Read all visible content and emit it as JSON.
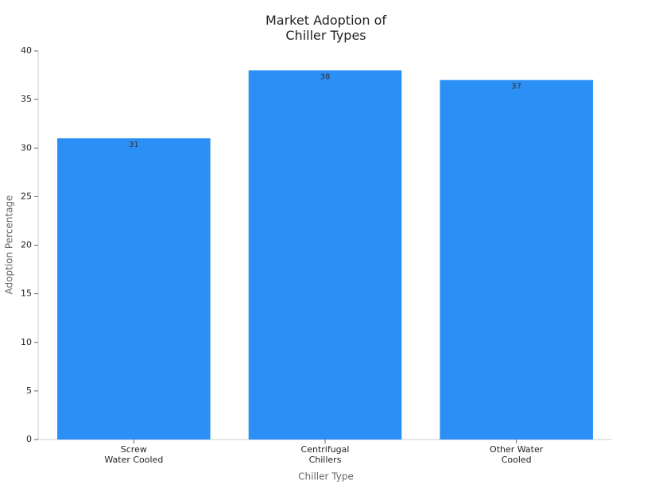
{
  "chart_data": {
    "type": "bar",
    "title": "Market Adoption of\nChiller Types",
    "x_label": "Chiller Type",
    "y_label": "Adoption Percentage",
    "categories": [
      "Screw\nWater Cooled",
      "Centrifugal\nChillers",
      "Other Water\nCooled"
    ],
    "values": [
      31,
      38,
      37
    ],
    "color": "#2b8ff5",
    "ylim": [
      0,
      40
    ],
    "yticks": [
      0,
      5,
      10,
      15,
      20,
      25,
      30,
      35,
      40
    ],
    "grid": false
  }
}
